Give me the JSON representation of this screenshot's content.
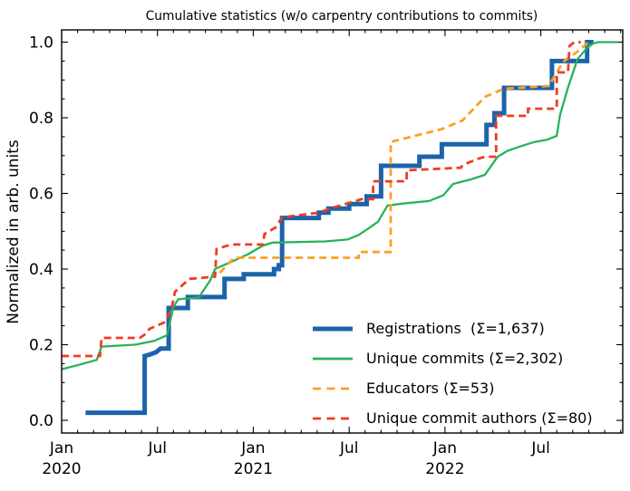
{
  "figure": {
    "title": "Cumulative statistics (w/o carpentry contributions to commits)"
  },
  "chart_data": {
    "type": "line",
    "title": "Cumulative statistics (w/o carpentry contributions to commits)",
    "xlabel": "",
    "ylabel": "Normalized in arb. units",
    "x_axis_unit": "months since 2020-01",
    "xlim": [
      0,
      35.13
    ],
    "ylim": [
      -0.034,
      1.033
    ],
    "grid": false,
    "legend_position": "lower right, no frame",
    "x_major_ticks": [
      {
        "m": 0,
        "label": "Jan",
        "year": "2020"
      },
      {
        "m": 6,
        "label": "Jul",
        "year": ""
      },
      {
        "m": 12,
        "label": "Jan",
        "year": "2021"
      },
      {
        "m": 18,
        "label": "Jul",
        "year": ""
      },
      {
        "m": 24,
        "label": "Jan",
        "year": "2022"
      },
      {
        "m": 30,
        "label": "Jul",
        "year": ""
      }
    ],
    "x_minor_step": 1,
    "y_major_ticks": [
      {
        "v": 0.0,
        "label": "0.0"
      },
      {
        "v": 0.2,
        "label": "0.2"
      },
      {
        "v": 0.4,
        "label": "0.4"
      },
      {
        "v": 0.6,
        "label": "0.6"
      },
      {
        "v": 0.8,
        "label": "0.8"
      },
      {
        "v": 1.0,
        "label": "1.0"
      }
    ],
    "y_minor_step": 0.05,
    "series": [
      {
        "name": "registrations",
        "legend_label": "Registrations  (Σ=1,637)",
        "total": "1,637",
        "color": "#1c63a9",
        "width": 5,
        "dash": "",
        "points": [
          [
            1.5,
            0.02
          ],
          [
            5.2,
            0.02
          ],
          [
            5.2,
            0.17
          ],
          [
            5.6,
            0.175
          ],
          [
            5.9,
            0.18
          ],
          [
            6.2,
            0.19
          ],
          [
            6.7,
            0.19
          ],
          [
            6.7,
            0.297
          ],
          [
            7.9,
            0.297
          ],
          [
            7.9,
            0.326
          ],
          [
            10.2,
            0.326
          ],
          [
            10.2,
            0.374
          ],
          [
            11.4,
            0.374
          ],
          [
            11.4,
            0.386
          ],
          [
            13.3,
            0.386
          ],
          [
            13.3,
            0.4
          ],
          [
            13.6,
            0.4
          ],
          [
            13.6,
            0.41
          ],
          [
            13.8,
            0.41
          ],
          [
            13.8,
            0.535
          ],
          [
            16.1,
            0.535
          ],
          [
            16.1,
            0.549
          ],
          [
            16.7,
            0.549
          ],
          [
            16.7,
            0.56
          ],
          [
            18.0,
            0.56
          ],
          [
            18.0,
            0.572
          ],
          [
            19.1,
            0.572
          ],
          [
            19.1,
            0.592
          ],
          [
            20.0,
            0.592
          ],
          [
            20.0,
            0.673
          ],
          [
            22.4,
            0.673
          ],
          [
            22.4,
            0.697
          ],
          [
            23.8,
            0.697
          ],
          [
            23.8,
            0.73
          ],
          [
            26.6,
            0.73
          ],
          [
            26.6,
            0.781
          ],
          [
            27.1,
            0.781
          ],
          [
            27.1,
            0.812
          ],
          [
            27.7,
            0.812
          ],
          [
            27.7,
            0.879
          ],
          [
            30.7,
            0.879
          ],
          [
            30.7,
            0.95
          ],
          [
            32.9,
            0.95
          ],
          [
            32.9,
            1.0
          ],
          [
            33.3,
            1.0
          ]
        ]
      },
      {
        "name": "unique-commits",
        "legend_label": "Unique commits (Σ=2,302)",
        "total": "2,302",
        "color": "#27b257",
        "width": 2.3,
        "dash": "",
        "points": [
          [
            0,
            0.135
          ],
          [
            1.2,
            0.148
          ],
          [
            2.2,
            0.16
          ],
          [
            2.5,
            0.195
          ],
          [
            4.6,
            0.2
          ],
          [
            5.8,
            0.21
          ],
          [
            6.6,
            0.225
          ],
          [
            7.0,
            0.3
          ],
          [
            7.3,
            0.32
          ],
          [
            8.6,
            0.325
          ],
          [
            8.9,
            0.345
          ],
          [
            9.3,
            0.37
          ],
          [
            9.6,
            0.4
          ],
          [
            10.4,
            0.415
          ],
          [
            11.2,
            0.43
          ],
          [
            11.7,
            0.44
          ],
          [
            12.6,
            0.462
          ],
          [
            13.2,
            0.47
          ],
          [
            16.5,
            0.473
          ],
          [
            17.9,
            0.478
          ],
          [
            18.6,
            0.49
          ],
          [
            19.2,
            0.507
          ],
          [
            19.8,
            0.525
          ],
          [
            20.4,
            0.568
          ],
          [
            21.3,
            0.573
          ],
          [
            23.0,
            0.58
          ],
          [
            23.9,
            0.595
          ],
          [
            24.5,
            0.625
          ],
          [
            25.6,
            0.637
          ],
          [
            26.5,
            0.649
          ],
          [
            27.3,
            0.697
          ],
          [
            27.9,
            0.712
          ],
          [
            28.7,
            0.724
          ],
          [
            29.6,
            0.736
          ],
          [
            30.4,
            0.742
          ],
          [
            31.0,
            0.752
          ],
          [
            31.2,
            0.807
          ],
          [
            31.7,
            0.88
          ],
          [
            32.3,
            0.955
          ],
          [
            32.9,
            0.985
          ],
          [
            33.3,
            0.997
          ],
          [
            33.6,
            1.0
          ],
          [
            34.8,
            1.0
          ]
        ]
      },
      {
        "name": "educators",
        "legend_label": "Educators (Σ=53)",
        "total": "53",
        "color": "#ff9e27",
        "width": 2.8,
        "dash": "8 5",
        "points": [
          [
            9.9,
            0.39
          ],
          [
            10.8,
            0.43
          ],
          [
            18.6,
            0.43
          ],
          [
            18.6,
            0.445
          ],
          [
            20.6,
            0.445
          ],
          [
            20.6,
            0.736
          ],
          [
            22.1,
            0.752
          ],
          [
            23.8,
            0.77
          ],
          [
            25.1,
            0.793
          ],
          [
            26.5,
            0.855
          ],
          [
            27.7,
            0.877
          ],
          [
            30.5,
            0.884
          ],
          [
            31.4,
            0.948
          ],
          [
            32.3,
            0.975
          ],
          [
            33.0,
            1.0
          ]
        ]
      },
      {
        "name": "unique-commit-authors",
        "legend_label": "Unique commit authors (Σ=80)",
        "total": "80",
        "color": "#ef3c23",
        "width": 2.8,
        "dash": "8 5",
        "points": [
          [
            0,
            0.17
          ],
          [
            2.4,
            0.17
          ],
          [
            2.5,
            0.218
          ],
          [
            4.9,
            0.218
          ],
          [
            5.3,
            0.23
          ],
          [
            5.5,
            0.242
          ],
          [
            6.5,
            0.26
          ],
          [
            6.9,
            0.3
          ],
          [
            7.1,
            0.34
          ],
          [
            8.0,
            0.374
          ],
          [
            9.6,
            0.38
          ],
          [
            9.7,
            0.453
          ],
          [
            10.6,
            0.465
          ],
          [
            12.6,
            0.465
          ],
          [
            12.7,
            0.493
          ],
          [
            13.4,
            0.51
          ],
          [
            13.8,
            0.537
          ],
          [
            16.1,
            0.549
          ],
          [
            16.8,
            0.56
          ],
          [
            18.8,
            0.585
          ],
          [
            19.5,
            0.585
          ],
          [
            19.5,
            0.632
          ],
          [
            21.6,
            0.632
          ],
          [
            21.6,
            0.661
          ],
          [
            25.0,
            0.668
          ],
          [
            25.1,
            0.675
          ],
          [
            26.1,
            0.692
          ],
          [
            26.5,
            0.697
          ],
          [
            27.2,
            0.697
          ],
          [
            27.2,
            0.805
          ],
          [
            29.2,
            0.805
          ],
          [
            29.2,
            0.824
          ],
          [
            31.0,
            0.824
          ],
          [
            31.0,
            0.92
          ],
          [
            31.7,
            0.92
          ],
          [
            31.8,
            0.99
          ],
          [
            32.1,
            1.0
          ],
          [
            32.5,
            1.0
          ]
        ]
      }
    ]
  }
}
